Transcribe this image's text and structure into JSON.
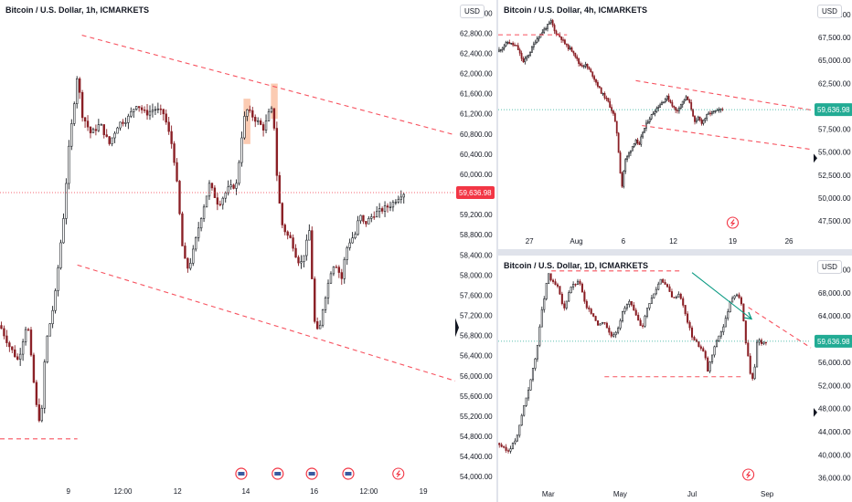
{
  "chart_data": [
    {
      "type": "candlestick",
      "title": "Bitcoin / U.S. Dollar, 1h, ICMARKETS",
      "currency": "USD",
      "ylim": [
        53950,
        63350
      ],
      "xlim": [
        0,
        100
      ],
      "y_ticks": [
        54000,
        54400,
        54800,
        55200,
        55600,
        56000,
        56400,
        56800,
        57200,
        57600,
        58000,
        58400,
        58800,
        59200,
        59600,
        60000,
        60400,
        60800,
        61200,
        61600,
        62000,
        62400,
        62800,
        63200
      ],
      "x_ticks": [
        {
          "x": 15,
          "label": "9"
        },
        {
          "x": 27,
          "label": "12:00"
        },
        {
          "x": 39,
          "label": "12"
        },
        {
          "x": 54,
          "label": "14"
        },
        {
          "x": 69,
          "label": "16"
        },
        {
          "x": 81,
          "label": "12:00"
        },
        {
          "x": 93,
          "label": "19"
        }
      ],
      "last_price": 59636.98,
      "last_price_label": "59,636.98",
      "last_price_color": "#f23645",
      "anchors": [
        [
          0,
          57000
        ],
        [
          2,
          56600
        ],
        [
          4,
          56300
        ],
        [
          6,
          57100
        ],
        [
          7,
          56200
        ],
        [
          8,
          55400
        ],
        [
          9,
          55000
        ],
        [
          10,
          56600
        ],
        [
          12,
          57500
        ],
        [
          14,
          59200
        ],
        [
          15,
          60400
        ],
        [
          17,
          62000
        ],
        [
          18,
          61200
        ],
        [
          20,
          60800
        ],
        [
          22,
          61000
        ],
        [
          24,
          60600
        ],
        [
          26,
          61000
        ],
        [
          28,
          61100
        ],
        [
          30,
          61400
        ],
        [
          32,
          61200
        ],
        [
          34,
          61300
        ],
        [
          36,
          61200
        ],
        [
          38,
          60500
        ],
        [
          39,
          59700
        ],
        [
          40,
          58600
        ],
        [
          41,
          58100
        ],
        [
          42,
          58300
        ],
        [
          43,
          58700
        ],
        [
          44,
          59100
        ],
        [
          46,
          59800
        ],
        [
          48,
          59400
        ],
        [
          50,
          59700
        ],
        [
          52,
          59800
        ],
        [
          53,
          60700
        ],
        [
          54,
          61300
        ],
        [
          56,
          61100
        ],
        [
          58,
          60900
        ],
        [
          59,
          61200
        ],
        [
          60,
          61300
        ],
        [
          61,
          59700
        ],
        [
          62,
          59000
        ],
        [
          63,
          58800
        ],
        [
          64,
          58700
        ],
        [
          65,
          58400
        ],
        [
          66,
          58200
        ],
        [
          67,
          58500
        ],
        [
          68,
          58900
        ],
        [
          69,
          57100
        ],
        [
          70,
          56800
        ],
        [
          71,
          57400
        ],
        [
          72,
          57800
        ],
        [
          73,
          58200
        ],
        [
          74,
          58200
        ],
        [
          75,
          57900
        ],
        [
          76,
          58500
        ],
        [
          77,
          58700
        ],
        [
          78,
          58800
        ],
        [
          79,
          59200
        ],
        [
          80,
          59000
        ],
        [
          82,
          59200
        ],
        [
          84,
          59300
        ],
        [
          86,
          59400
        ],
        [
          88,
          59600
        ],
        [
          89,
          59640
        ]
      ],
      "lines": [
        {
          "style": "dashed",
          "color": "#f7525f",
          "points": [
            [
              18,
              62760
            ],
            [
              100,
              60780
            ]
          ]
        },
        {
          "style": "dashed",
          "color": "#f7525f",
          "points": [
            [
              17,
              58200
            ],
            [
              100,
              55900
            ]
          ]
        },
        {
          "style": "dashed",
          "color": "#f7525f",
          "points": [
            [
              0,
              54750
            ],
            [
              17,
              54750
            ]
          ]
        }
      ],
      "highlight_zones": [
        {
          "x0": 53.5,
          "x1": 55,
          "y0": 60600,
          "y1": 61500
        },
        {
          "x0": 59.5,
          "x1": 61,
          "y0": 61100,
          "y1": 61800
        }
      ],
      "event_icons_x": [
        53,
        61,
        68.5,
        76.5
      ]
    },
    {
      "type": "candlestick",
      "title": "Bitcoin / U.S. Dollar, 4h, ICMARKETS",
      "currency": "USD",
      "ylim": [
        46500,
        71000
      ],
      "xlim": [
        0,
        100
      ],
      "y_ticks": [
        47500,
        50000,
        52500,
        55000,
        57500,
        60000,
        62500,
        65000,
        67500,
        70000
      ],
      "x_ticks": [
        {
          "x": 10,
          "label": "27"
        },
        {
          "x": 25,
          "label": "Aug"
        },
        {
          "x": 40,
          "label": "6"
        },
        {
          "x": 56,
          "label": "12"
        },
        {
          "x": 75,
          "label": "19"
        },
        {
          "x": 93,
          "label": "26"
        }
      ],
      "last_price": 59636.98,
      "last_price_label": "59,636.98",
      "last_price_color": "#22ab94",
      "anchors": [
        [
          0,
          66000
        ],
        [
          3,
          67000
        ],
        [
          6,
          66500
        ],
        [
          8,
          64800
        ],
        [
          10,
          65800
        ],
        [
          12,
          67200
        ],
        [
          15,
          68500
        ],
        [
          17,
          69300
        ],
        [
          18,
          68200
        ],
        [
          20,
          67500
        ],
        [
          22,
          66500
        ],
        [
          24,
          66000
        ],
        [
          26,
          64500
        ],
        [
          28,
          64500
        ],
        [
          30,
          63500
        ],
        [
          33,
          61500
        ],
        [
          35,
          60600
        ],
        [
          37,
          59000
        ],
        [
          38,
          57000
        ],
        [
          39,
          53000
        ],
        [
          39.5,
          51000
        ],
        [
          40.5,
          54000
        ],
        [
          42,
          55000
        ],
        [
          44,
          56400
        ],
        [
          45,
          55500
        ],
        [
          46,
          57000
        ],
        [
          48,
          58500
        ],
        [
          50,
          59500
        ],
        [
          52,
          60300
        ],
        [
          54,
          61000
        ],
        [
          55,
          60500
        ],
        [
          57,
          59400
        ],
        [
          58,
          60000
        ],
        [
          60,
          61000
        ],
        [
          61,
          60500
        ],
        [
          62,
          59500
        ],
        [
          63,
          58000
        ],
        [
          64,
          58800
        ],
        [
          65,
          58200
        ],
        [
          67,
          59100
        ],
        [
          68,
          59300
        ],
        [
          70,
          59500
        ],
        [
          72,
          59640
        ]
      ],
      "lines": [
        {
          "style": "dashed",
          "color": "#f7525f",
          "points": [
            [
              44,
              62800
            ],
            [
              100,
              59600
            ]
          ]
        },
        {
          "style": "dashed",
          "color": "#f7525f",
          "points": [
            [
              46,
              57900
            ],
            [
              100,
              55300
            ]
          ]
        },
        {
          "style": "dashed",
          "color": "#f7525f",
          "points": [
            [
              0,
              67800
            ],
            [
              22,
              67800
            ]
          ]
        }
      ]
    },
    {
      "type": "candlestick",
      "title": "Bitcoin / U.S. Dollar, 1D, ICMARKETS",
      "currency": "USD",
      "ylim": [
        35000,
        73500
      ],
      "xlim": [
        0,
        100
      ],
      "y_ticks": [
        36000,
        40000,
        44000,
        48000,
        52000,
        56000,
        60000,
        64000,
        68000,
        72000
      ],
      "x_ticks": [
        {
          "x": 16,
          "label": "Mar"
        },
        {
          "x": 39,
          "label": "May"
        },
        {
          "x": 62,
          "label": "Jul"
        },
        {
          "x": 86,
          "label": "Sep"
        }
      ],
      "last_price": 59636.98,
      "last_price_label": "59,636.98",
      "last_price_color": "#22ab94",
      "anchors": [
        [
          0,
          42000
        ],
        [
          3,
          40500
        ],
        [
          6,
          43000
        ],
        [
          8,
          48000
        ],
        [
          10,
          52000
        ],
        [
          12,
          57000
        ],
        [
          13,
          61000
        ],
        [
          14,
          65000
        ],
        [
          15,
          68000
        ],
        [
          16,
          71500
        ],
        [
          17,
          70000
        ],
        [
          19,
          69000
        ],
        [
          20,
          67000
        ],
        [
          21,
          65000
        ],
        [
          23,
          69000
        ],
        [
          26,
          70000
        ],
        [
          28,
          65500
        ],
        [
          30,
          64500
        ],
        [
          32,
          62500
        ],
        [
          34,
          63000
        ],
        [
          36,
          60500
        ],
        [
          38,
          61500
        ],
        [
          40,
          65000
        ],
        [
          42,
          66500
        ],
        [
          44,
          64000
        ],
        [
          46,
          62000
        ],
        [
          48,
          66000
        ],
        [
          50,
          68000
        ],
        [
          52,
          70500
        ],
        [
          54,
          69000
        ],
        [
          56,
          67000
        ],
        [
          58,
          68000
        ],
        [
          60,
          64000
        ],
        [
          62,
          60500
        ],
        [
          64,
          59000
        ],
        [
          66,
          57500
        ],
        [
          67,
          54500
        ],
        [
          68,
          56500
        ],
        [
          70,
          60000
        ],
        [
          72,
          62000
        ],
        [
          74,
          66000
        ],
        [
          76,
          68000
        ],
        [
          78,
          66000
        ],
        [
          79,
          60000
        ],
        [
          80,
          57000
        ],
        [
          81,
          52500
        ],
        [
          82,
          55000
        ],
        [
          83,
          60500
        ],
        [
          84,
          59000
        ],
        [
          86,
          59640
        ]
      ],
      "lines": [
        {
          "style": "dashed",
          "color": "#f7525f",
          "points": [
            [
              17,
              71800
            ],
            [
              58,
              71800
            ]
          ]
        },
        {
          "style": "dashed",
          "color": "#f7525f",
          "points": [
            [
              34,
              53500
            ],
            [
              78,
              53500
            ]
          ]
        },
        {
          "style": "solid",
          "color": "#089981",
          "points": [
            [
              62,
              71500
            ],
            [
              81,
              63500
            ]
          ]
        },
        {
          "style": "dashed",
          "color": "#f7525f",
          "points": [
            [
              80,
              65500
            ],
            [
              100,
              58500
            ]
          ]
        }
      ]
    }
  ]
}
